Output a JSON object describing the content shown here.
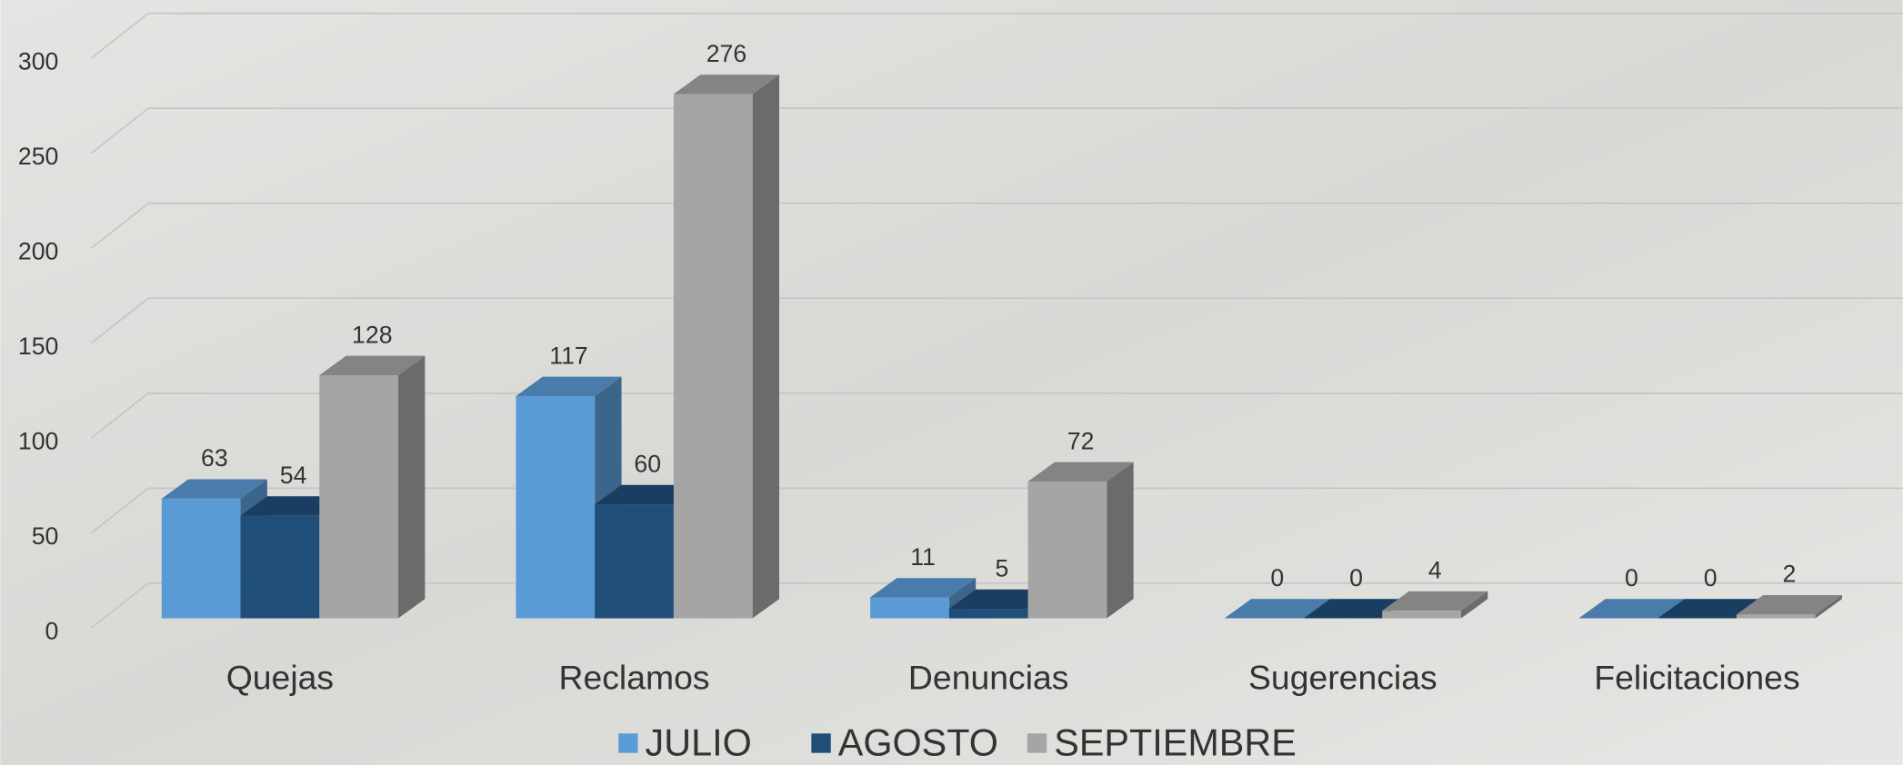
{
  "chart_data": {
    "type": "bar3d",
    "categories": [
      "Quejas",
      "Reclamos",
      "Denuncias",
      "Sugerencias",
      "Felicitaciones"
    ],
    "series": [
      {
        "name": "JULIO",
        "color": "#5b9bd5",
        "values": [
          63,
          117,
          11,
          0,
          0
        ]
      },
      {
        "name": "AGOSTO",
        "color": "#1f4e79",
        "values": [
          54,
          60,
          5,
          0,
          0
        ]
      },
      {
        "name": "SEPTIEMBRE",
        "color": "#a5a5a5",
        "values": [
          128,
          276,
          72,
          4,
          2
        ]
      }
    ],
    "ylim": [
      0,
      300
    ],
    "yticks": [
      0,
      50,
      100,
      150,
      200,
      250,
      300
    ],
    "grid": true,
    "legend": "bottom"
  }
}
